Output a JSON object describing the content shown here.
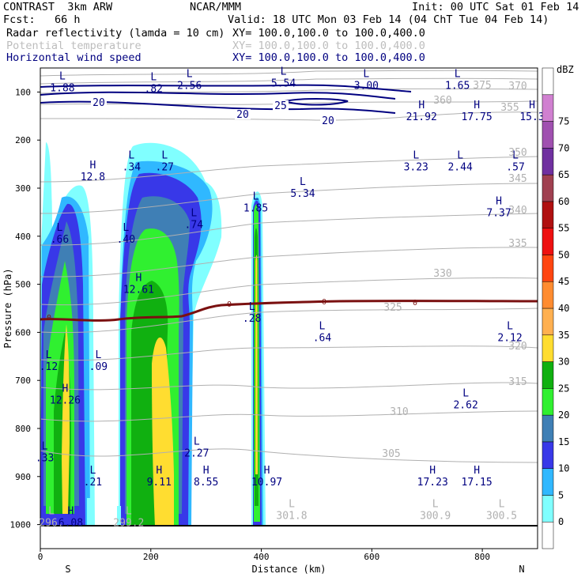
{
  "header": {
    "title_left": "CONTRAST  3km ARW",
    "title_center": "NCAR/MMM",
    "init": "Init: 00 UTC Sat 01 Feb 14",
    "fcst": "Fcst:   66 h",
    "valid": "Valid: 18 UTC Mon 03 Feb 14 (04 ChT Tue 04 Feb 14)",
    "field1": "Radar reflectivity (lamda = 10 cm)",
    "field1_xy": "XY= 100.0,100.0 to 100.0,400.0",
    "field2": "Potential temperature",
    "field2_xy": "XY= 100.0,100.0 to 100.0,400.0",
    "field3": "Horizontal wind speed",
    "field3_xy": "XY= 100.0,100.0 to 100.0,400.0"
  },
  "colors": {
    "navy": "#000080",
    "theta": "#b0b0b0",
    "zero_isotherm": "#7a1010"
  },
  "chart_data": {
    "type": "heatmap",
    "title": "Radar reflectivity (lamda = 10 cm) cross section",
    "xlabel": "Distance (km)",
    "ylabel": "Pressure (hPa)",
    "xlim": [
      0,
      900
    ],
    "ylim": [
      1050,
      50
    ],
    "x_ticks": [
      0,
      200,
      400,
      600,
      800
    ],
    "y_ticks": [
      100,
      200,
      300,
      400,
      500,
      600,
      700,
      800,
      900,
      1000
    ],
    "x_end_labels": [
      "S",
      "N"
    ],
    "colorbar": {
      "unit": "dBZ",
      "levels": [
        0,
        5,
        10,
        15,
        20,
        25,
        30,
        35,
        40,
        45,
        50,
        55,
        60,
        65,
        70,
        75
      ],
      "colors": [
        "#ffffff",
        "#80ffff",
        "#30b8ff",
        "#3838e8",
        "#3f7fb5",
        "#30f030",
        "#10b010",
        "#ffdd30",
        "#ffb050",
        "#ff8c30",
        "#ff4510",
        "#ee1010",
        "#b01010",
        "#a04050",
        "#7030a0",
        "#a050b0",
        "#d080d0",
        "#ffffff"
      ]
    },
    "theta_contours": [
      {
        "value": "300.5",
        "kind": "min"
      },
      {
        "value": "305",
        "kind": "contour"
      },
      {
        "value": "310",
        "kind": "contour"
      },
      {
        "value": "315",
        "kind": "contour"
      },
      {
        "value": "320",
        "kind": "contour"
      },
      {
        "value": "325",
        "kind": "contour"
      },
      {
        "value": "330",
        "kind": "contour"
      },
      {
        "value": "335",
        "kind": "contour"
      },
      {
        "value": "340",
        "kind": "contour"
      },
      {
        "value": "345",
        "kind": "contour"
      },
      {
        "value": "350",
        "kind": "contour"
      },
      {
        "value": "355",
        "kind": "contour"
      },
      {
        "value": "360",
        "kind": "contour"
      },
      {
        "value": "370",
        "kind": "contour"
      },
      {
        "value": "375",
        "kind": "contour"
      }
    ],
    "wind_contour_labels": [
      "20",
      "25",
      "20",
      "20"
    ],
    "freezing_level_label": "0",
    "extrema": [
      {
        "type": "L",
        "value": "1.88",
        "x": 40,
        "p": 95
      },
      {
        "type": "L",
        "value": ".82",
        "x": 205,
        "p": 97
      },
      {
        "type": "L",
        "value": "2.56",
        "x": 270,
        "p": 90
      },
      {
        "type": "L",
        "value": "5.54",
        "x": 440,
        "p": 85
      },
      {
        "type": "L",
        "value": "3.00",
        "x": 590,
        "p": 90
      },
      {
        "type": "L",
        "value": "1.65",
        "x": 755,
        "p": 90
      },
      {
        "type": "H",
        "value": "21.92",
        "x": 690,
        "p": 155
      },
      {
        "type": "H",
        "value": "17.75",
        "x": 790,
        "p": 155
      },
      {
        "type": "H",
        "value": "15.3",
        "x": 890,
        "p": 155
      },
      {
        "type": "H",
        "value": "12.8",
        "x": 95,
        "p": 280
      },
      {
        "type": "L",
        "value": ".34",
        "x": 165,
        "p": 260
      },
      {
        "type": "L",
        "value": ".27",
        "x": 225,
        "p": 260
      },
      {
        "type": "L",
        "value": "5.34",
        "x": 475,
        "p": 315
      },
      {
        "type": "L",
        "value": "3.23",
        "x": 680,
        "p": 260
      },
      {
        "type": "L",
        "value": "2.44",
        "x": 760,
        "p": 260
      },
      {
        "type": "L",
        "value": ".57",
        "x": 860,
        "p": 260
      },
      {
        "type": "L",
        "value": "1.85",
        "x": 390,
        "p": 345
      },
      {
        "type": "H",
        "value": "7.37",
        "x": 830,
        "p": 355
      },
      {
        "type": "L",
        "value": ".74",
        "x": 278,
        "p": 380
      },
      {
        "type": "L",
        "value": ".66",
        "x": 35,
        "p": 410
      },
      {
        "type": "L",
        "value": ".40",
        "x": 155,
        "p": 410
      },
      {
        "type": "H",
        "value": "12.61",
        "x": 178,
        "p": 515
      },
      {
        "type": "L",
        "value": ".28",
        "x": 383,
        "p": 575
      },
      {
        "type": "L",
        "value": ".64",
        "x": 510,
        "p": 615
      },
      {
        "type": "L",
        "value": "2.12",
        "x": 850,
        "p": 615
      },
      {
        "type": "L",
        "value": ".12",
        "x": 15,
        "p": 675
      },
      {
        "type": "L",
        "value": ".09",
        "x": 105,
        "p": 675
      },
      {
        "type": "H",
        "value": "12.26",
        "x": 45,
        "p": 745
      },
      {
        "type": "L",
        "value": "2.62",
        "x": 770,
        "p": 755
      },
      {
        "type": "L",
        "value": "2.27",
        "x": 283,
        "p": 855
      },
      {
        "type": "L",
        "value": ".33",
        "x": 8,
        "p": 865
      },
      {
        "type": "L",
        "value": ".21",
        "x": 95,
        "p": 915
      },
      {
        "type": "H",
        "value": "9.11",
        "x": 215,
        "p": 915
      },
      {
        "type": "H",
        "value": "8.55",
        "x": 300,
        "p": 915
      },
      {
        "type": "H",
        "value": "10.97",
        "x": 410,
        "p": 915
      },
      {
        "type": "H",
        "value": "17.23",
        "x": 710,
        "p": 915
      },
      {
        "type": "H",
        "value": "17.15",
        "x": 790,
        "p": 915
      },
      {
        "type": "L",
        "value": "301.8",
        "x": 455,
        "p": 985
      },
      {
        "type": "L",
        "value": "300.9",
        "x": 715,
        "p": 985
      },
      {
        "type": "L",
        "value": "300.5",
        "x": 835,
        "p": 985
      },
      {
        "type": "H",
        "value": "6.08",
        "x": 55,
        "p": 1000
      },
      {
        "type": "L",
        "value": "299.2",
        "x": 160,
        "p": 1000
      },
      {
        "type": "L",
        "value": "296.",
        "x": 20,
        "p": 1000
      }
    ]
  }
}
